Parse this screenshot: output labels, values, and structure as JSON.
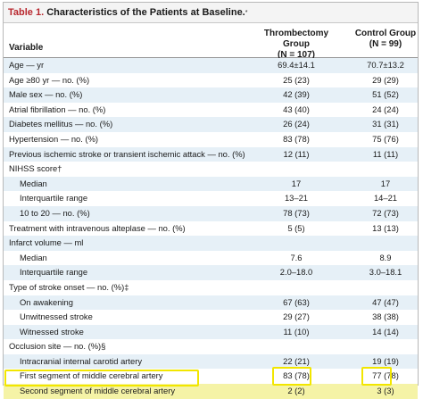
{
  "table": {
    "number": "Table 1.",
    "title": "Characteristics of the Patients at Baseline.",
    "title_mark": "*",
    "headers": {
      "variable": "Variable",
      "group1": "Thrombectomy Group",
      "group1_n": "(N = 107)",
      "group2": "Control Group",
      "group2_n": "(N = 99)"
    },
    "rows": [
      {
        "label": "Age — yr",
        "v1": "69.4±14.1",
        "v2": "70.7±13.2"
      },
      {
        "label": "Age ≥80 yr — no. (%)",
        "v1": "25 (23)",
        "v2": "29 (29)"
      },
      {
        "label": "Male sex — no. (%)",
        "v1": "42 (39)",
        "v2": "51 (52)"
      },
      {
        "label": "Atrial fibrillation — no. (%)",
        "v1": "43 (40)",
        "v2": "24 (24)"
      },
      {
        "label": "Diabetes mellitus — no. (%)",
        "v1": "26 (24)",
        "v2": "31 (31)"
      },
      {
        "label": "Hypertension — no. (%)",
        "v1": "83 (78)",
        "v2": "75 (76)"
      },
      {
        "label": "Previous ischemic stroke or transient ischemic attack — no. (%)",
        "v1": "12 (11)",
        "v2": "11 (11)"
      },
      {
        "label": "NIHSS score†",
        "v1": "",
        "v2": ""
      },
      {
        "label": "Median",
        "v1": "17",
        "v2": "17"
      },
      {
        "label": "Interquartile range",
        "v1": "13–21",
        "v2": "14–21"
      },
      {
        "label": "10 to 20 — no. (%)",
        "v1": "78 (73)",
        "v2": "72 (73)"
      },
      {
        "label": "Treatment with intravenous alteplase — no. (%)",
        "v1": "5 (5)",
        "v2": "13 (13)"
      },
      {
        "label": "Infarct volume — ml",
        "v1": "",
        "v2": ""
      },
      {
        "label": "Median",
        "v1": "7.6",
        "v2": "8.9"
      },
      {
        "label": "Interquartile range",
        "v1": "2.0–18.0",
        "v2": "3.0–18.1"
      },
      {
        "label": "Type of stroke onset — no. (%)‡",
        "v1": "",
        "v2": ""
      },
      {
        "label": "On awakening",
        "v1": "67 (63)",
        "v2": "47 (47)"
      },
      {
        "label": "Unwitnessed stroke",
        "v1": "29 (27)",
        "v2": "38 (38)"
      },
      {
        "label": "Witnessed stroke",
        "v1": "11 (10)",
        "v2": "14 (14)"
      },
      {
        "label": "Occlusion site — no. (%)§",
        "v1": "",
        "v2": ""
      },
      {
        "label": "Intracranial internal carotid artery",
        "v1": "22 (21)",
        "v2": "19 (19)"
      },
      {
        "label": "First segment of middle cerebral artery",
        "v1": "83 (78)",
        "v2": "77 (78)"
      },
      {
        "label": "Second segment of middle cerebral artery",
        "v1": "2 (2)",
        "v2": "3 (3)"
      }
    ]
  }
}
